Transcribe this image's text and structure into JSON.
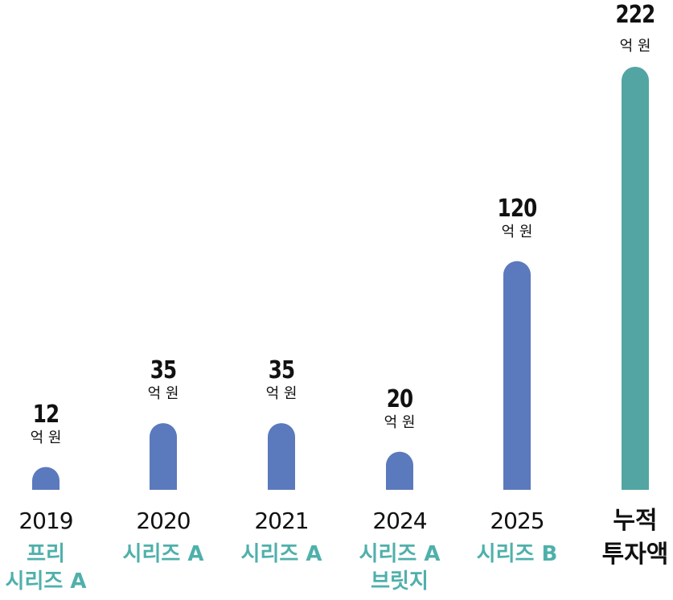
{
  "chart_data": {
    "type": "bar",
    "unit": "억 원",
    "colors": {
      "annual": "#5b79bd",
      "cumulative": "#52a5a2",
      "label_accent": "#4fb0ab",
      "text": "#111111"
    },
    "bars": [
      {
        "year": "2019",
        "round_lines": [
          "프리",
          "시리즈 A"
        ],
        "value": 12,
        "value_label": "12"
      },
      {
        "year": "2020",
        "round_lines": [
          "시리즈 A"
        ],
        "value": 35,
        "value_label": "35"
      },
      {
        "year": "2021",
        "round_lines": [
          "시리즈 A"
        ],
        "value": 35,
        "value_label": "35"
      },
      {
        "year": "2024",
        "round_lines": [
          "시리즈 A",
          "브릿지"
        ],
        "value": 20,
        "value_label": "20"
      },
      {
        "year": "2025",
        "round_lines": [
          "시리즈 B"
        ],
        "value": 120,
        "value_label": "120"
      }
    ],
    "cumulative": {
      "label_lines": [
        "누적",
        "투자액"
      ],
      "value": 222,
      "value_label": "222"
    }
  }
}
